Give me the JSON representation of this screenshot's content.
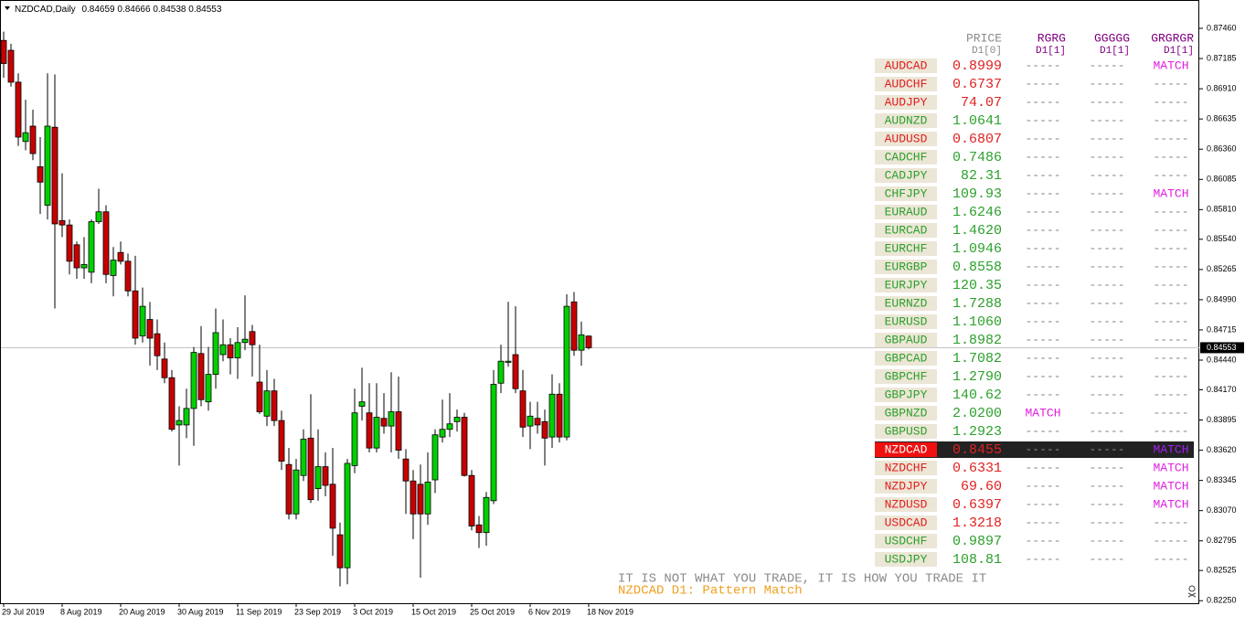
{
  "header": {
    "title": "NZDCAD,Daily"
  },
  "chart_data": {
    "type": "candlestick",
    "up_color": "#00d000",
    "down_color": "#c80000",
    "ylim": [
      0.82227,
      0.87718
    ],
    "price_line": true,
    "yticks": [
      {
        "value": 0.8746,
        "label": "0.87460"
      },
      {
        "value": 0.87185,
        "label": "0.87185"
      },
      {
        "value": 0.8691,
        "label": "0.86910"
      },
      {
        "value": 0.86635,
        "label": "0.86635"
      },
      {
        "value": 0.8636,
        "label": "0.86360"
      },
      {
        "value": 0.86085,
        "label": "0.86085"
      },
      {
        "value": 0.8581,
        "label": "0.85810"
      },
      {
        "value": 0.8554,
        "label": "0.85540"
      },
      {
        "value": 0.85265,
        "label": "0.85265"
      },
      {
        "value": 0.8499,
        "label": "0.84990"
      },
      {
        "value": 0.84715,
        "label": "0.84715"
      },
      {
        "value": 0.8444,
        "label": "0.84440"
      },
      {
        "value": 0.8417,
        "label": "0.84170"
      },
      {
        "value": 0.83895,
        "label": "0.83895"
      },
      {
        "value": 0.8362,
        "label": "0.83620"
      },
      {
        "value": 0.83345,
        "label": "0.83345"
      },
      {
        "value": 0.8307,
        "label": "0.83070"
      },
      {
        "value": 0.82795,
        "label": "0.82795"
      },
      {
        "value": 0.82525,
        "label": "0.82525"
      },
      {
        "value": 0.8225,
        "label": "0.82250"
      }
    ],
    "x": [
      "29 Jul 2019",
      null,
      null,
      null,
      null,
      null,
      null,
      null,
      "8 Aug 2019",
      null,
      null,
      null,
      null,
      null,
      null,
      null,
      "20 Aug 2019",
      null,
      null,
      null,
      null,
      null,
      null,
      null,
      "30 Aug 2019",
      null,
      null,
      null,
      null,
      null,
      null,
      null,
      "11 Sep 2019",
      null,
      null,
      null,
      null,
      null,
      null,
      null,
      "23 Sep 2019",
      null,
      null,
      null,
      null,
      null,
      null,
      null,
      "3 Oct 2019",
      null,
      null,
      null,
      null,
      null,
      null,
      null,
      "15 Oct 2019",
      null,
      null,
      null,
      null,
      null,
      null,
      null,
      "25 Oct 2019",
      null,
      null,
      null,
      null,
      null,
      null,
      null,
      "6 Nov 2019",
      null,
      null,
      null,
      null,
      null,
      null,
      null,
      "18 Nov 2019"
    ],
    "candles": [
      [
        0.8735,
        0.8743,
        0.8701,
        0.8714
      ],
      [
        0.8726,
        0.8732,
        0.8693,
        0.8697
      ],
      [
        0.8697,
        0.8705,
        0.8639,
        0.8647
      ],
      [
        0.8643,
        0.8681,
        0.8635,
        0.8651
      ],
      [
        0.8657,
        0.8672,
        0.8626,
        0.8632
      ],
      [
        0.862,
        0.8647,
        0.8577,
        0.8606
      ],
      [
        0.8585,
        0.8705,
        0.8572,
        0.8657
      ],
      [
        0.8656,
        0.8704,
        0.8491,
        0.8568
      ],
      [
        0.8571,
        0.8614,
        0.8556,
        0.8567
      ],
      [
        0.8567,
        0.8572,
        0.8522,
        0.8534
      ],
      [
        0.8549,
        0.8552,
        0.8518,
        0.8528
      ],
      [
        0.8528,
        0.8556,
        0.8518,
        0.8531
      ],
      [
        0.8524,
        0.8572,
        0.8514,
        0.857
      ],
      [
        0.857,
        0.86,
        0.8568,
        0.8579
      ],
      [
        0.8579,
        0.8585,
        0.8514,
        0.8522
      ],
      [
        0.8521,
        0.8547,
        0.8502,
        0.8535
      ],
      [
        0.8542,
        0.8552,
        0.8531,
        0.8534
      ],
      [
        0.8534,
        0.8541,
        0.8502,
        0.8507
      ],
      [
        0.8507,
        0.8539,
        0.8458,
        0.8464
      ],
      [
        0.8466,
        0.851,
        0.846,
        0.8493
      ],
      [
        0.8481,
        0.8497,
        0.8439,
        0.8464
      ],
      [
        0.8468,
        0.8481,
        0.8435,
        0.8448
      ],
      [
        0.8445,
        0.846,
        0.8423,
        0.8428
      ],
      [
        0.8428,
        0.8435,
        0.8379,
        0.8381
      ],
      [
        0.8385,
        0.8402,
        0.8348,
        0.8389
      ],
      [
        0.8385,
        0.8418,
        0.8373,
        0.84
      ],
      [
        0.84,
        0.8456,
        0.8366,
        0.8451
      ],
      [
        0.845,
        0.8475,
        0.8402,
        0.8408
      ],
      [
        0.8406,
        0.8456,
        0.8398,
        0.8431
      ],
      [
        0.8431,
        0.8491,
        0.8418,
        0.8469
      ],
      [
        0.8449,
        0.8481,
        0.8443,
        0.8458
      ],
      [
        0.8458,
        0.8464,
        0.8431,
        0.8446
      ],
      [
        0.8446,
        0.8474,
        0.8427,
        0.846
      ],
      [
        0.846,
        0.8503,
        0.8453,
        0.8463
      ],
      [
        0.847,
        0.8476,
        0.8429,
        0.8458
      ],
      [
        0.8424,
        0.8458,
        0.8395,
        0.8397
      ],
      [
        0.8393,
        0.8435,
        0.8384,
        0.8416
      ],
      [
        0.8416,
        0.8427,
        0.8384,
        0.8389
      ],
      [
        0.8389,
        0.8398,
        0.8344,
        0.8352
      ],
      [
        0.8349,
        0.8364,
        0.8299,
        0.8304
      ],
      [
        0.8304,
        0.8354,
        0.8299,
        0.8344
      ],
      [
        0.8339,
        0.8381,
        0.8334,
        0.8372
      ],
      [
        0.8373,
        0.8413,
        0.8314,
        0.8317
      ],
      [
        0.8327,
        0.8381,
        0.8316,
        0.8347
      ],
      [
        0.8347,
        0.836,
        0.832,
        0.833
      ],
      [
        0.8331,
        0.8364,
        0.8266,
        0.8291
      ],
      [
        0.8285,
        0.8296,
        0.8238,
        0.8255
      ],
      [
        0.8255,
        0.8354,
        0.824,
        0.835
      ],
      [
        0.8348,
        0.8418,
        0.8341,
        0.8396
      ],
      [
        0.8402,
        0.8437,
        0.8389,
        0.8406
      ],
      [
        0.8396,
        0.8423,
        0.836,
        0.8364
      ],
      [
        0.8364,
        0.8423,
        0.836,
        0.8392
      ],
      [
        0.8391,
        0.8414,
        0.8377,
        0.8384
      ],
      [
        0.8384,
        0.8433,
        0.836,
        0.8397
      ],
      [
        0.8397,
        0.8429,
        0.8354,
        0.8362
      ],
      [
        0.8354,
        0.8363,
        0.8304,
        0.8334
      ],
      [
        0.8334,
        0.8344,
        0.8281,
        0.8304
      ],
      [
        0.8331,
        0.8349,
        0.8246,
        0.8304
      ],
      [
        0.8304,
        0.836,
        0.8294,
        0.8333
      ],
      [
        0.8335,
        0.8381,
        0.8323,
        0.8376
      ],
      [
        0.8374,
        0.8408,
        0.8369,
        0.8381
      ],
      [
        0.8381,
        0.8414,
        0.8374,
        0.8386
      ],
      [
        0.8388,
        0.8399,
        0.8379,
        0.8392
      ],
      [
        0.8392,
        0.8396,
        0.8338,
        0.8339
      ],
      [
        0.8339,
        0.8344,
        0.8289,
        0.8293
      ],
      [
        0.8294,
        0.8302,
        0.8273,
        0.8287
      ],
      [
        0.8287,
        0.8324,
        0.8275,
        0.8319
      ],
      [
        0.8316,
        0.8435,
        0.8313,
        0.8422
      ],
      [
        0.8423,
        0.8458,
        0.8414,
        0.8443
      ],
      [
        0.8442,
        0.8497,
        0.8438,
        0.8443
      ],
      [
        0.8449,
        0.8493,
        0.8414,
        0.8418
      ],
      [
        0.8416,
        0.8435,
        0.8374,
        0.8383
      ],
      [
        0.8384,
        0.8406,
        0.8363,
        0.8393
      ],
      [
        0.8391,
        0.8406,
        0.8377,
        0.8385
      ],
      [
        0.8388,
        0.8399,
        0.8348,
        0.8373
      ],
      [
        0.8374,
        0.8431,
        0.8364,
        0.8413
      ],
      [
        0.8413,
        0.8423,
        0.8369,
        0.8374
      ],
      [
        0.8374,
        0.8504,
        0.8371,
        0.8493
      ],
      [
        0.8497,
        0.8506,
        0.8448,
        0.8453
      ],
      [
        0.8453,
        0.8479,
        0.8439,
        0.8467
      ],
      [
        0.84659,
        0.84666,
        0.84538,
        0.84553
      ]
    ]
  },
  "table": {
    "headers": [
      [
        "PRICE",
        "D1[0]"
      ],
      [
        "RGRG",
        "D1[1]"
      ],
      [
        "GGGGG",
        "D1[1]"
      ],
      [
        "GRGRGR",
        "D1[1]"
      ]
    ],
    "up_color": "#2ca02c",
    "down_color": "#e02020",
    "match_color": "#e020e0",
    "rows": [
      {
        "symbol": "AUDCAD",
        "price": "0.8999",
        "trend": "down",
        "cells": [
          "-----",
          "-----",
          "MATCH"
        ]
      },
      {
        "symbol": "AUDCHF",
        "price": "0.6737",
        "trend": "down",
        "cells": [
          "-----",
          "-----",
          "-----"
        ]
      },
      {
        "symbol": "AUDJPY",
        "price": "74.07",
        "trend": "down",
        "cells": [
          "-----",
          "-----",
          "-----"
        ]
      },
      {
        "symbol": "AUDNZD",
        "price": "1.0641",
        "trend": "up",
        "cells": [
          "-----",
          "-----",
          "-----"
        ]
      },
      {
        "symbol": "AUDUSD",
        "price": "0.6807",
        "trend": "down",
        "cells": [
          "-----",
          "-----",
          "-----"
        ]
      },
      {
        "symbol": "CADCHF",
        "price": "0.7486",
        "trend": "up",
        "cells": [
          "-----",
          "-----",
          "-----"
        ]
      },
      {
        "symbol": "CADJPY",
        "price": "82.31",
        "trend": "up",
        "cells": [
          "-----",
          "-----",
          "-----"
        ]
      },
      {
        "symbol": "CHFJPY",
        "price": "109.93",
        "trend": "up",
        "cells": [
          "-----",
          "-----",
          "MATCH"
        ]
      },
      {
        "symbol": "EURAUD",
        "price": "1.6246",
        "trend": "up",
        "cells": [
          "-----",
          "-----",
          "-----"
        ]
      },
      {
        "symbol": "EURCAD",
        "price": "1.4620",
        "trend": "up",
        "cells": [
          "-----",
          "-----",
          "-----"
        ]
      },
      {
        "symbol": "EURCHF",
        "price": "1.0946",
        "trend": "up",
        "cells": [
          "-----",
          "-----",
          "-----"
        ]
      },
      {
        "symbol": "EURGBP",
        "price": "0.8558",
        "trend": "up",
        "cells": [
          "-----",
          "-----",
          "-----"
        ]
      },
      {
        "symbol": "EURJPY",
        "price": "120.35",
        "trend": "up",
        "cells": [
          "-----",
          "-----",
          "-----"
        ]
      },
      {
        "symbol": "EURNZD",
        "price": "1.7288",
        "trend": "up",
        "cells": [
          "-----",
          "-----",
          "-----"
        ]
      },
      {
        "symbol": "EURUSD",
        "price": "1.1060",
        "trend": "up",
        "cells": [
          "-----",
          "-----",
          "-----"
        ]
      },
      {
        "symbol": "GBPAUD",
        "price": "1.8982",
        "trend": "up",
        "cells": [
          "-----",
          "-----",
          "-----"
        ]
      },
      {
        "symbol": "GBPCAD",
        "price": "1.7082",
        "trend": "up",
        "cells": [
          "-----",
          "-----",
          "-----"
        ]
      },
      {
        "symbol": "GBPCHF",
        "price": "1.2790",
        "trend": "up",
        "cells": [
          "-----",
          "-----",
          "-----"
        ]
      },
      {
        "symbol": "GBPJPY",
        "price": "140.62",
        "trend": "up",
        "cells": [
          "-----",
          "-----",
          "-----"
        ]
      },
      {
        "symbol": "GBPNZD",
        "price": "2.0200",
        "trend": "up",
        "cells": [
          "MATCH",
          "-----",
          "-----"
        ]
      },
      {
        "symbol": "GBPUSD",
        "price": "1.2923",
        "trend": "up",
        "cells": [
          "-----",
          "-----",
          "-----"
        ]
      },
      {
        "symbol": "NZDCAD",
        "price": "0.8455",
        "trend": "down",
        "highlight": true,
        "cells": [
          "-----",
          "-----",
          "MATCH"
        ]
      },
      {
        "symbol": "NZDCHF",
        "price": "0.6331",
        "trend": "down",
        "cells": [
          "-----",
          "-----",
          "MATCH"
        ]
      },
      {
        "symbol": "NZDJPY",
        "price": "69.60",
        "trend": "down",
        "cells": [
          "-----",
          "-----",
          "MATCH"
        ]
      },
      {
        "symbol": "NZDUSD",
        "price": "0.6397",
        "trend": "down",
        "cells": [
          "-----",
          "-----",
          "MATCH"
        ]
      },
      {
        "symbol": "USDCAD",
        "price": "1.3218",
        "trend": "down",
        "cells": [
          "-----",
          "-----",
          "-----"
        ]
      },
      {
        "symbol": "USDCHF",
        "price": "0.9897",
        "trend": "up",
        "cells": [
          "-----",
          "-----",
          "-----"
        ]
      },
      {
        "symbol": "USDJPY",
        "price": "108.81",
        "trend": "up",
        "cells": [
          "-----",
          "-----",
          "-----"
        ]
      }
    ]
  },
  "footer": {
    "slogan": "IT IS NOT WHAT YOU TRADE, IT IS HOW YOU TRADE IT",
    "status": "NZDCAD D1: Pattern Match"
  }
}
